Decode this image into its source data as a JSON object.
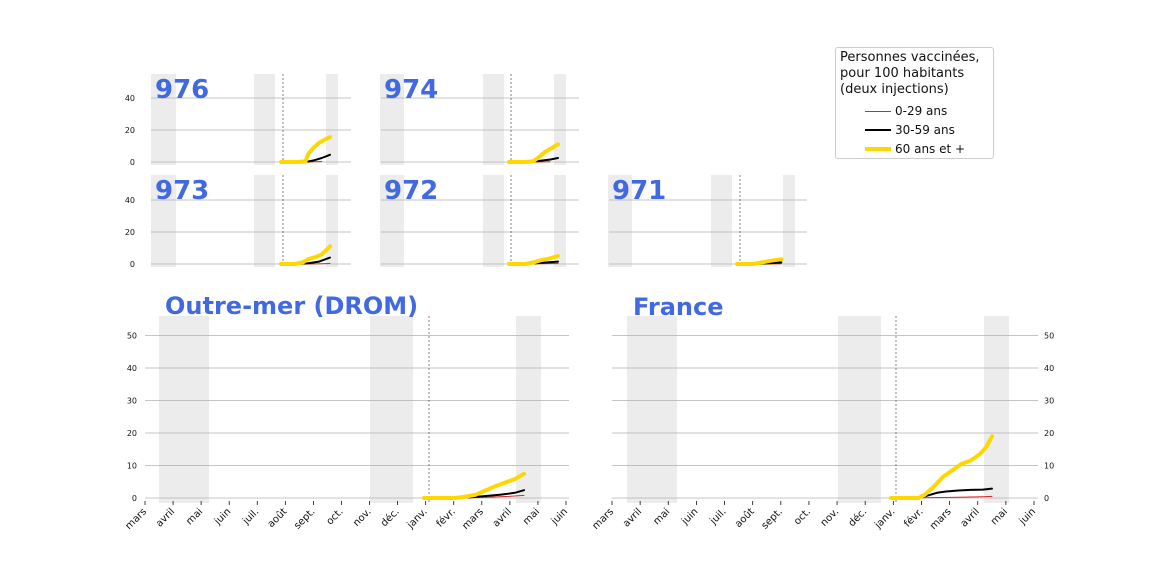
{
  "legend": {
    "title_lines": [
      "Personnes vaccinées,",
      "pour 100 habitants",
      "(deux injections)"
    ],
    "items": [
      {
        "label": "0-29 ans",
        "color": "#d62728",
        "width": 1
      },
      {
        "label": "30-59 ans",
        "color": "#000000",
        "width": 2
      },
      {
        "label": "60 ans et +",
        "color": "#FFD700",
        "width": 4
      }
    ]
  },
  "colors": {
    "title": "#4169E1",
    "shade": "#e6e6e6",
    "grid": "#b0b0b0"
  },
  "chart_data": [
    {
      "type": "line",
      "title": "976",
      "yticks": [
        "0",
        "20",
        "40"
      ],
      "ylim": [
        0,
        55
      ],
      "series": [
        {
          "values": [
            [
              0,
              0
            ],
            [
              0.5,
              0
            ],
            [
              1,
              0
            ],
            [
              1.5,
              0.3
            ]
          ]
        },
        {
          "values": [
            [
              0,
              0
            ],
            [
              0.5,
              0
            ],
            [
              1,
              0.3
            ],
            [
              1.2,
              1
            ],
            [
              1.5,
              2.5
            ],
            [
              1.8,
              4.5
            ]
          ]
        },
        {
          "values": [
            [
              0,
              0
            ],
            [
              0.5,
              0
            ],
            [
              0.9,
              0.3
            ],
            [
              1.0,
              5
            ],
            [
              1.2,
              9
            ],
            [
              1.4,
              12
            ],
            [
              1.6,
              14
            ],
            [
              1.8,
              15.5
            ]
          ]
        }
      ]
    },
    {
      "type": "line",
      "title": "974",
      "yticks": [
        "0",
        "20",
        "40"
      ],
      "ylim": [
        0,
        55
      ],
      "series": [
        {
          "values": [
            [
              0,
              0
            ],
            [
              0.5,
              0
            ],
            [
              1,
              0
            ],
            [
              1.5,
              0.2
            ]
          ]
        },
        {
          "values": [
            [
              0,
              0
            ],
            [
              0.6,
              0
            ],
            [
              1,
              0.5
            ],
            [
              1.5,
              1.5
            ],
            [
              1.8,
              2.5
            ]
          ]
        },
        {
          "values": [
            [
              0,
              0
            ],
            [
              0.6,
              0
            ],
            [
              0.9,
              0.5
            ],
            [
              1.1,
              3
            ],
            [
              1.3,
              6
            ],
            [
              1.5,
              8
            ],
            [
              1.8,
              11
            ]
          ]
        }
      ]
    },
    {
      "type": "line",
      "title": "973",
      "yticks": [
        "0",
        "20",
        "40"
      ],
      "ylim": [
        0,
        55
      ],
      "series": [
        {
          "values": [
            [
              0,
              0
            ],
            [
              0.5,
              0
            ],
            [
              1,
              0
            ],
            [
              1.5,
              0.2
            ],
            [
              1.8,
              0.3
            ]
          ]
        },
        {
          "values": [
            [
              0,
              0
            ],
            [
              0.6,
              0
            ],
            [
              1,
              0.5
            ],
            [
              1.4,
              1.5
            ],
            [
              1.8,
              4
            ]
          ]
        },
        {
          "values": [
            [
              0,
              0
            ],
            [
              0.5,
              0
            ],
            [
              0.8,
              1
            ],
            [
              1.0,
              3
            ],
            [
              1.3,
              4.5
            ],
            [
              1.5,
              6
            ],
            [
              1.8,
              11
            ]
          ]
        }
      ]
    },
    {
      "type": "line",
      "title": "972",
      "yticks": [
        "0",
        "20",
        "40"
      ],
      "ylim": [
        0,
        55
      ],
      "series": [
        {
          "values": [
            [
              0,
              0
            ],
            [
              0.5,
              0
            ],
            [
              1,
              0.1
            ],
            [
              1.8,
              0.4
            ]
          ]
        },
        {
          "values": [
            [
              0,
              0
            ],
            [
              0.6,
              0
            ],
            [
              1,
              0.5
            ],
            [
              1.4,
              1
            ],
            [
              1.8,
              1.5
            ]
          ]
        },
        {
          "values": [
            [
              0,
              0
            ],
            [
              0.6,
              0
            ],
            [
              0.9,
              1
            ],
            [
              1.2,
              2.5
            ],
            [
              1.5,
              3.5
            ],
            [
              1.8,
              5
            ]
          ]
        }
      ]
    },
    {
      "type": "line",
      "title": "971",
      "yticks": [],
      "ylim": [
        0,
        55
      ],
      "series": [
        {
          "values": [
            [
              0,
              0
            ],
            [
              0.5,
              0
            ],
            [
              1,
              0
            ],
            [
              1.6,
              0.2
            ]
          ]
        },
        {
          "values": [
            [
              0,
              0
            ],
            [
              0.6,
              0
            ],
            [
              1,
              0.3
            ],
            [
              1.6,
              1
            ]
          ]
        },
        {
          "values": [
            [
              0,
              0
            ],
            [
              0.6,
              0
            ],
            [
              0.9,
              1
            ],
            [
              1.2,
              2
            ],
            [
              1.6,
              3
            ]
          ]
        }
      ]
    },
    {
      "type": "line",
      "title": "Outre-mer (DROM)",
      "yticks": [
        "0",
        "10",
        "20",
        "30",
        "40",
        "50"
      ],
      "ylim": [
        0,
        56
      ],
      "xticks": [
        "mars",
        "avril",
        "mai",
        "juin",
        "juil.",
        "août",
        "sept.",
        "oct.",
        "nov.",
        "déc.",
        "janv.",
        "févr.",
        "mars",
        "avril",
        "mai",
        "juin"
      ],
      "series": [
        {
          "values": [
            [
              0,
              0
            ],
            [
              1,
              0
            ],
            [
              2,
              0.2
            ],
            [
              2.8,
              0.5
            ],
            [
              3.3,
              0.8
            ]
          ]
        },
        {
          "values": [
            [
              0,
              0
            ],
            [
              1,
              0
            ],
            [
              1.5,
              0.2
            ],
            [
              2,
              0.6
            ],
            [
              2.5,
              1
            ],
            [
              3,
              1.6
            ],
            [
              3.3,
              2.4
            ]
          ]
        },
        {
          "values": [
            [
              0,
              0
            ],
            [
              1,
              0
            ],
            [
              1.3,
              0.3
            ],
            [
              1.7,
              1
            ],
            [
              2,
              2.2
            ],
            [
              2.3,
              3.4
            ],
            [
              2.6,
              4.5
            ],
            [
              3,
              5.8
            ],
            [
              3.3,
              7.4
            ]
          ]
        }
      ]
    },
    {
      "type": "line",
      "title": "France",
      "yticks": [
        "0",
        "10",
        "20",
        "30",
        "40",
        "50"
      ],
      "ylim": [
        0,
        56
      ],
      "xticks": [
        "mars",
        "avril",
        "mai",
        "juin",
        "juil.",
        "août",
        "sept.",
        "oct.",
        "nov.",
        "déc.",
        "janv.",
        "févr.",
        "mars",
        "avril",
        "mai",
        "juin"
      ],
      "series": [
        {
          "values": [
            [
              0,
              0
            ],
            [
              1,
              0.1
            ],
            [
              2,
              0.2
            ],
            [
              3,
              0.4
            ],
            [
              3.3,
              0.5
            ]
          ]
        },
        {
          "values": [
            [
              0,
              0
            ],
            [
              0.9,
              0
            ],
            [
              1.1,
              0.5
            ],
            [
              1.5,
              1.6
            ],
            [
              1.8,
              2
            ],
            [
              2.2,
              2.3
            ],
            [
              2.6,
              2.5
            ],
            [
              3,
              2.6
            ],
            [
              3.3,
              2.9
            ]
          ]
        },
        {
          "values": [
            [
              0,
              0
            ],
            [
              0.9,
              0
            ],
            [
              1.1,
              1
            ],
            [
              1.4,
              3.5
            ],
            [
              1.7,
              6.5
            ],
            [
              2,
              8.5
            ],
            [
              2.3,
              10.5
            ],
            [
              2.6,
              11.5
            ],
            [
              2.9,
              13.5
            ],
            [
              3.1,
              15.5
            ],
            [
              3.3,
              19
            ]
          ]
        }
      ]
    }
  ]
}
